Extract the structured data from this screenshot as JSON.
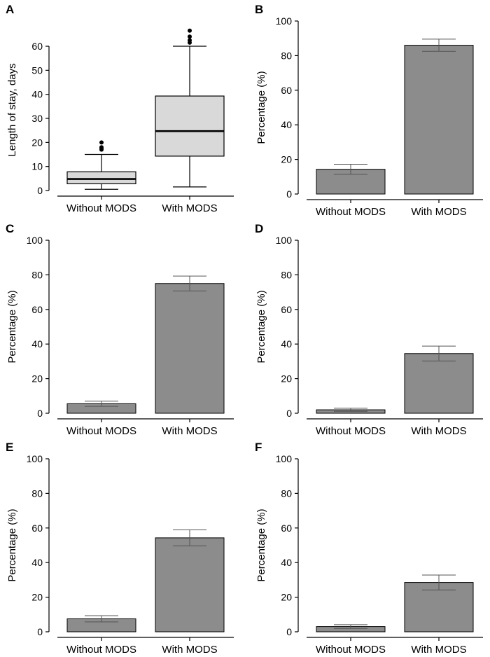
{
  "chart_data": [
    {
      "panel": "A",
      "type": "box",
      "ylabel": "Length of stay, days",
      "categories": [
        "Without MODS",
        "With MODS"
      ],
      "ylim": [
        0,
        67
      ],
      "yticks": [
        0,
        10,
        20,
        30,
        40,
        50,
        60
      ],
      "series": [
        {
          "category": "Without MODS",
          "min": 0.5,
          "q1": 2.8,
          "median": 4.8,
          "q3": 7.8,
          "max": 15,
          "outliers": [
            17,
            17.5,
            18,
            20
          ]
        },
        {
          "category": "With MODS",
          "min": 1.5,
          "q1": 14.3,
          "median": 24.7,
          "q3": 39.3,
          "max": 60,
          "outliers": [
            61.5,
            62.5,
            64,
            66.5
          ]
        }
      ],
      "colors": {
        "box": "#d9d9d9"
      }
    },
    {
      "panel": "B",
      "type": "bar",
      "ylabel": "Percentage (%)",
      "categories": [
        "Without MODS",
        "With MODS"
      ],
      "values": [
        14.3,
        86
      ],
      "errors": [
        2.9,
        3.5
      ],
      "ylim": [
        0,
        100
      ],
      "yticks": [
        0,
        20,
        40,
        60,
        80,
        100
      ],
      "colors": {
        "bar": "#8c8c8c"
      }
    },
    {
      "panel": "C",
      "type": "bar",
      "ylabel": "Percentage (%)",
      "categories": [
        "Without MODS",
        "With MODS"
      ],
      "values": [
        5.5,
        75
      ],
      "errors": [
        1.5,
        4.3
      ],
      "ylim": [
        0,
        100
      ],
      "yticks": [
        0,
        20,
        40,
        60,
        80,
        100
      ],
      "colors": {
        "bar": "#8c8c8c"
      }
    },
    {
      "panel": "D",
      "type": "bar",
      "ylabel": "Percentage (%)",
      "categories": [
        "Without MODS",
        "With MODS"
      ],
      "values": [
        2,
        34.5
      ],
      "errors": [
        0.9,
        4.3
      ],
      "ylim": [
        0,
        100
      ],
      "yticks": [
        0,
        20,
        40,
        60,
        80,
        100
      ],
      "colors": {
        "bar": "#8c8c8c"
      }
    },
    {
      "panel": "E",
      "type": "bar",
      "ylabel": "Percentage (%)",
      "categories": [
        "Without MODS",
        "With MODS"
      ],
      "values": [
        7.5,
        54.3
      ],
      "errors": [
        1.8,
        4.6
      ],
      "ylim": [
        0,
        100
      ],
      "yticks": [
        0,
        20,
        40,
        60,
        80,
        100
      ],
      "colors": {
        "bar": "#8c8c8c"
      }
    },
    {
      "panel": "F",
      "type": "bar",
      "ylabel": "Percentage (%)",
      "categories": [
        "Without MODS",
        "With MODS"
      ],
      "values": [
        3,
        28.5
      ],
      "errors": [
        1.1,
        4.3
      ],
      "ylim": [
        0,
        100
      ],
      "yticks": [
        0,
        20,
        40,
        60,
        80,
        100
      ],
      "colors": {
        "bar": "#8c8c8c"
      }
    }
  ]
}
